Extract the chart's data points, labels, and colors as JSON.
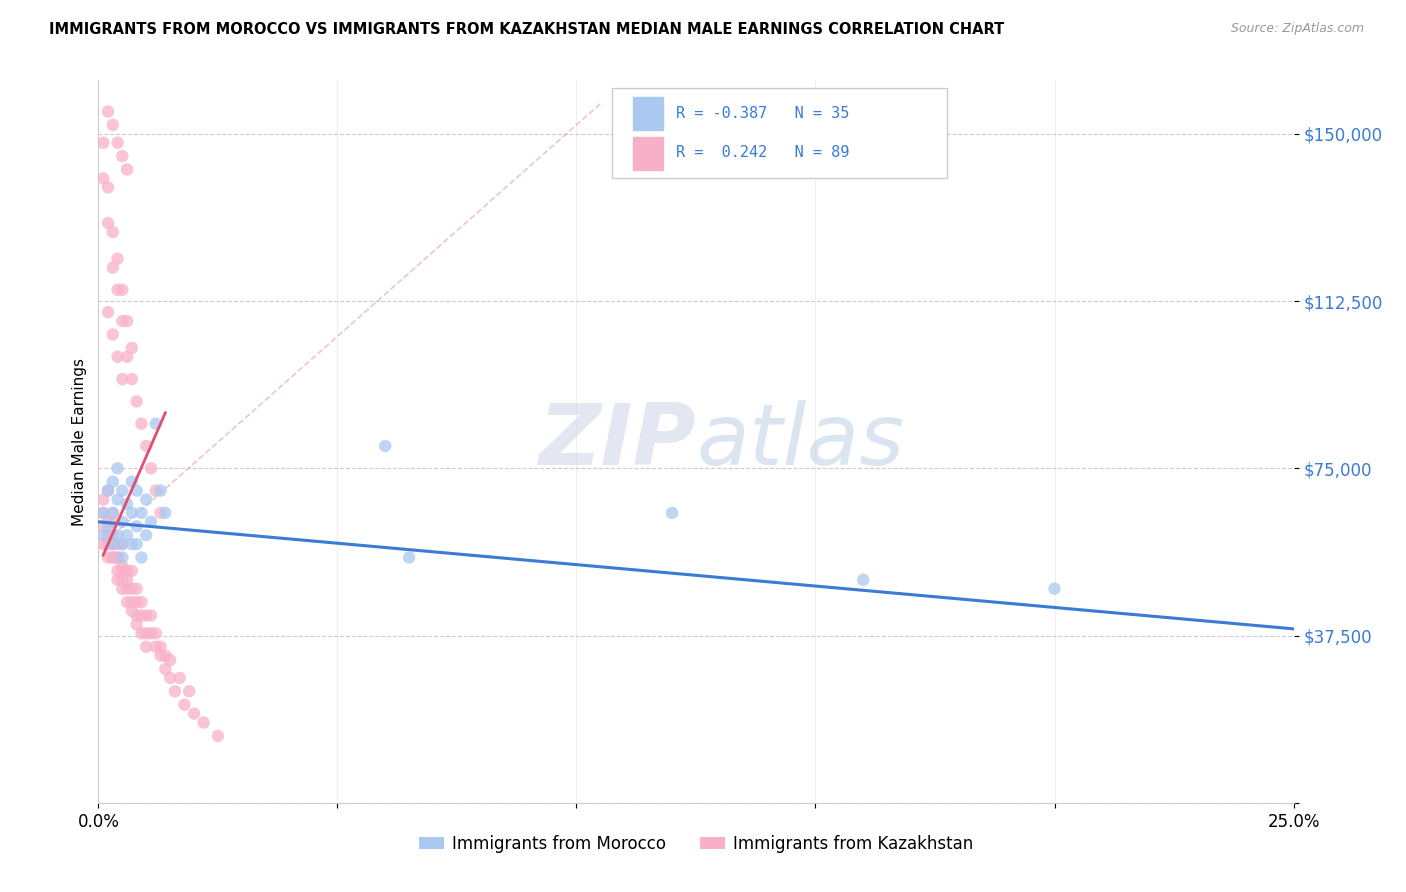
{
  "title": "IMMIGRANTS FROM MOROCCO VS IMMIGRANTS FROM KAZAKHSTAN MEDIAN MALE EARNINGS CORRELATION CHART",
  "source": "Source: ZipAtlas.com",
  "ylabel": "Median Male Earnings",
  "ytick_vals": [
    0,
    37500,
    75000,
    112500,
    150000
  ],
  "ytick_labels": [
    "",
    "$37,500",
    "$75,000",
    "$112,500",
    "$150,000"
  ],
  "xlim": [
    0.0,
    0.25
  ],
  "ylim": [
    0,
    162000
  ],
  "watermark": "ZIPatlas",
  "color_morocco": "#aac8f0",
  "color_kazakhstan": "#f8b0c8",
  "color_line_morocco": "#3a7bd5",
  "color_line_kazakhstan": "#e05070",
  "label_morocco": "Immigrants from Morocco",
  "label_kazakhstan": "Immigrants from Kazakhstan",
  "morocco_x": [
    0.001,
    0.001,
    0.002,
    0.002,
    0.003,
    0.003,
    0.003,
    0.004,
    0.004,
    0.004,
    0.005,
    0.005,
    0.005,
    0.005,
    0.006,
    0.006,
    0.007,
    0.007,
    0.007,
    0.008,
    0.008,
    0.008,
    0.009,
    0.009,
    0.01,
    0.01,
    0.011,
    0.012,
    0.013,
    0.014,
    0.06,
    0.065,
    0.12,
    0.16,
    0.2
  ],
  "morocco_y": [
    60000,
    65000,
    62000,
    70000,
    58000,
    65000,
    72000,
    60000,
    68000,
    75000,
    58000,
    63000,
    70000,
    55000,
    60000,
    67000,
    65000,
    58000,
    72000,
    62000,
    70000,
    58000,
    65000,
    55000,
    68000,
    60000,
    63000,
    85000,
    70000,
    65000,
    80000,
    55000,
    65000,
    50000,
    48000
  ],
  "kazakhstan_x": [
    0.001,
    0.001,
    0.001,
    0.001,
    0.002,
    0.002,
    0.002,
    0.002,
    0.002,
    0.003,
    0.003,
    0.003,
    0.003,
    0.003,
    0.003,
    0.004,
    0.004,
    0.004,
    0.004,
    0.004,
    0.005,
    0.005,
    0.005,
    0.005,
    0.005,
    0.006,
    0.006,
    0.006,
    0.006,
    0.007,
    0.007,
    0.007,
    0.007,
    0.008,
    0.008,
    0.008,
    0.008,
    0.009,
    0.009,
    0.009,
    0.01,
    0.01,
    0.01,
    0.011,
    0.011,
    0.012,
    0.012,
    0.013,
    0.013,
    0.014,
    0.014,
    0.015,
    0.015,
    0.016,
    0.017,
    0.018,
    0.019,
    0.02,
    0.022,
    0.025,
    0.001,
    0.001,
    0.002,
    0.002,
    0.003,
    0.003,
    0.004,
    0.004,
    0.005,
    0.005,
    0.006,
    0.006,
    0.007,
    0.007,
    0.008,
    0.009,
    0.01,
    0.011,
    0.012,
    0.013,
    0.002,
    0.003,
    0.004,
    0.005,
    0.006,
    0.002,
    0.003,
    0.004,
    0.005
  ],
  "kazakhstan_y": [
    58000,
    62000,
    65000,
    68000,
    55000,
    60000,
    63000,
    58000,
    70000,
    55000,
    60000,
    63000,
    58000,
    65000,
    55000,
    52000,
    55000,
    58000,
    50000,
    55000,
    50000,
    53000,
    58000,
    48000,
    52000,
    48000,
    52000,
    45000,
    50000,
    45000,
    48000,
    52000,
    43000,
    42000,
    45000,
    48000,
    40000,
    42000,
    45000,
    38000,
    38000,
    42000,
    35000,
    38000,
    42000,
    35000,
    38000,
    33000,
    35000,
    30000,
    33000,
    28000,
    32000,
    25000,
    28000,
    22000,
    25000,
    20000,
    18000,
    15000,
    140000,
    148000,
    130000,
    138000,
    120000,
    128000,
    115000,
    122000,
    108000,
    115000,
    100000,
    108000,
    95000,
    102000,
    90000,
    85000,
    80000,
    75000,
    70000,
    65000,
    155000,
    152000,
    148000,
    145000,
    142000,
    110000,
    105000,
    100000,
    95000
  ]
}
